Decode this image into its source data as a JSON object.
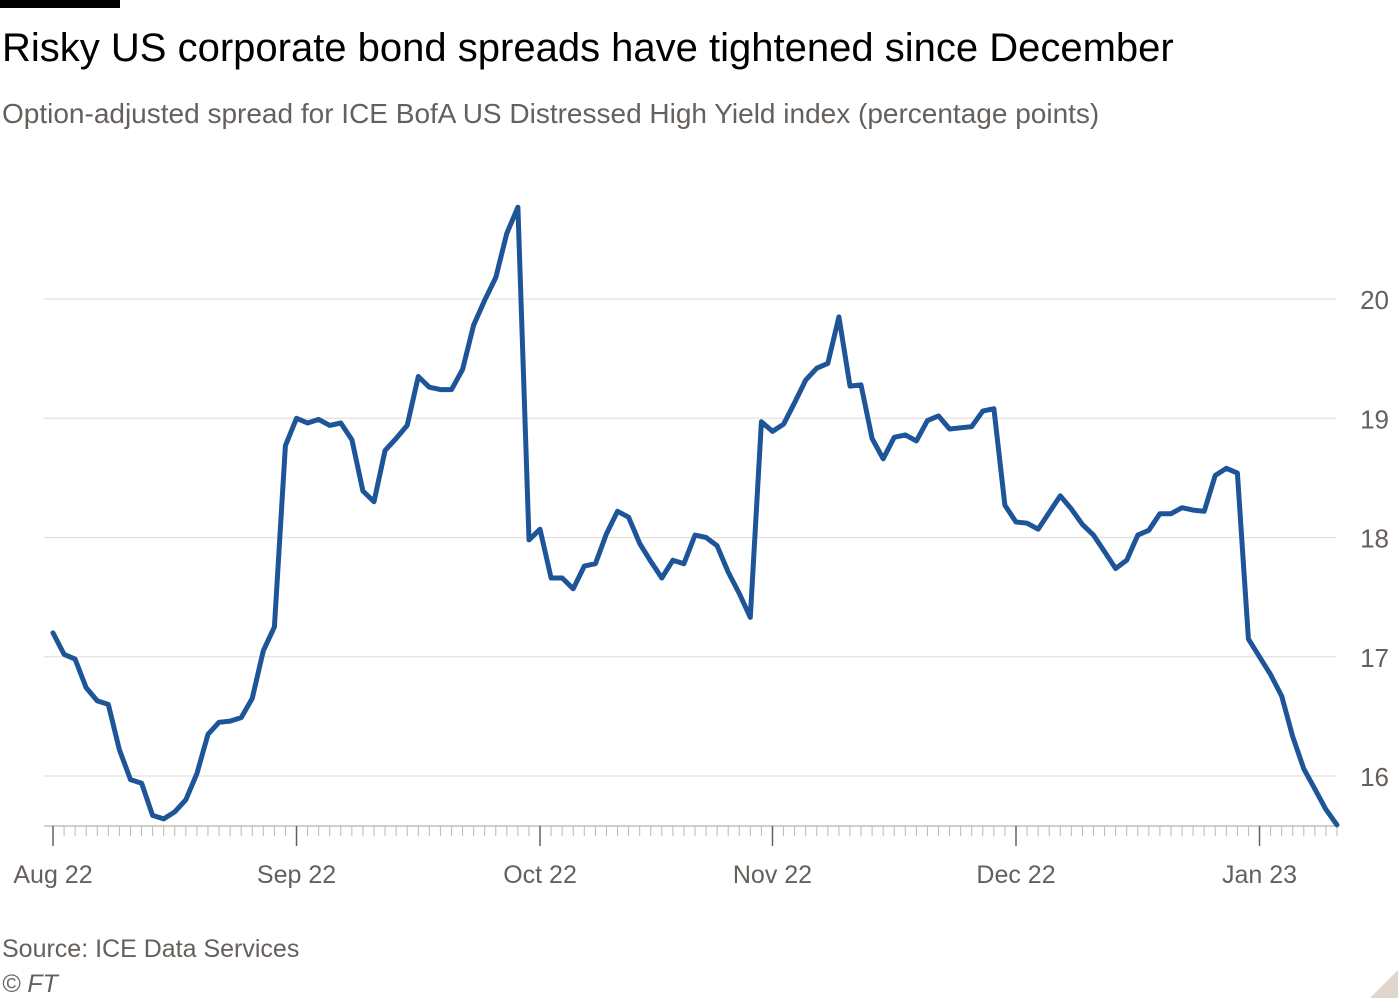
{
  "header": {
    "title": "Risky US corporate bond spreads have tightened since December",
    "subtitle": "Option-adjusted spread for ICE BofA US Distressed High Yield index (percentage points)"
  },
  "footer": {
    "source": "Source: ICE Data Services",
    "copyright": "© FT"
  },
  "colors": {
    "line": "#1d5598",
    "grid": "#e6e1dc",
    "text": "#66605c",
    "corner": "#e0d6cc"
  },
  "chart_data": {
    "type": "line",
    "title": "Risky US corporate bond spreads have tightened since December",
    "subtitle": "Option-adjusted spread for ICE BofA US Distressed High Yield index (percentage points)",
    "xlabel": "",
    "ylabel": "percentage points",
    "ylim": [
      15.58,
      20.9
    ],
    "y_ticks": [
      16,
      17,
      18,
      19,
      20
    ],
    "y_axis_position": "right",
    "grid": true,
    "x_tick_labels": [
      "Aug 22",
      "Sep 22",
      "Oct 22",
      "Nov 22",
      "Dec 22",
      "Jan 23"
    ],
    "x_tick_index": [
      0,
      22,
      44,
      65,
      87,
      109
    ],
    "series": [
      {
        "name": "ICE BofA US Distressed High Yield OAS",
        "values": [
          17.2,
          17.02,
          16.98,
          16.74,
          16.63,
          16.6,
          16.22,
          15.97,
          15.94,
          15.67,
          15.64,
          15.7,
          15.8,
          16.02,
          16.35,
          16.45,
          16.46,
          16.49,
          16.65,
          17.05,
          17.25,
          18.77,
          19.0,
          18.96,
          18.99,
          18.94,
          18.96,
          18.82,
          18.39,
          18.3,
          18.73,
          18.83,
          18.94,
          19.35,
          19.26,
          19.24,
          19.24,
          19.41,
          19.78,
          19.99,
          20.18,
          20.55,
          20.77,
          17.98,
          18.07,
          17.66,
          17.66,
          17.57,
          17.76,
          17.78,
          18.03,
          18.22,
          18.17,
          17.95,
          17.8,
          17.66,
          17.81,
          17.78,
          18.02,
          18.0,
          17.93,
          17.71,
          17.53,
          17.33,
          18.97,
          18.89,
          18.95,
          19.13,
          19.32,
          19.42,
          19.46,
          19.85,
          19.27,
          19.28,
          18.83,
          18.66,
          18.84,
          18.86,
          18.81,
          18.98,
          19.02,
          18.91,
          18.92,
          18.93,
          19.06,
          19.08,
          18.27,
          18.13,
          18.12,
          18.07,
          18.21,
          18.35,
          18.24,
          18.11,
          18.02,
          17.88,
          17.74,
          17.81,
          18.02,
          18.06,
          18.2,
          18.2,
          18.25,
          18.23,
          18.22,
          18.52,
          18.58,
          18.54,
          17.15,
          17.0,
          16.85,
          16.67,
          16.33,
          16.06,
          15.89,
          15.72,
          15.59
        ]
      }
    ]
  }
}
